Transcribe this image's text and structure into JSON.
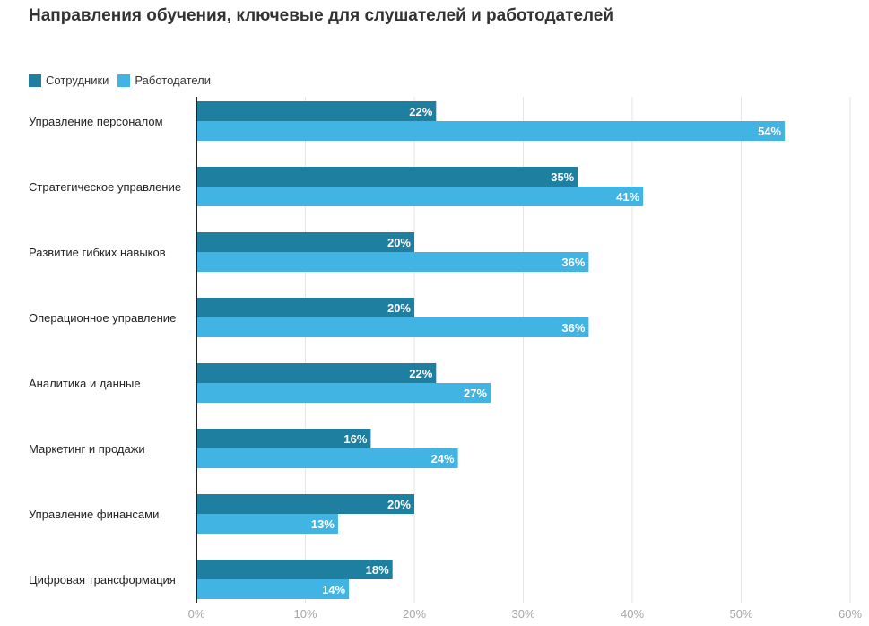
{
  "chart_data": {
    "type": "bar",
    "orientation": "horizontal",
    "title": "Направления обучения, ключевые для слушателей и работодателей",
    "categories": [
      "Управление персоналом",
      "Стратегическое управление",
      "Развитие гибких навыков",
      "Операционное управление",
      "Аналитика и данные",
      "Маркетинг и продажи",
      "Управление финансами",
      "Цифровая трансформация"
    ],
    "series": [
      {
        "name": "Сотрудники",
        "color": "#1f7fa0",
        "values": [
          22,
          35,
          20,
          20,
          22,
          16,
          20,
          18
        ]
      },
      {
        "name": "Работодатели",
        "color": "#41b4e3",
        "values": [
          54,
          41,
          36,
          36,
          27,
          24,
          13,
          14
        ]
      }
    ],
    "xlim": [
      0,
      60
    ],
    "xticks": [
      0,
      10,
      20,
      30,
      40,
      50,
      60
    ],
    "tick_suffix": "%",
    "value_suffix": "%",
    "grid": true,
    "legend_position": "top-left"
  }
}
